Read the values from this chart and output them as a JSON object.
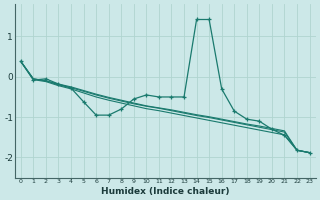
{
  "xlabel": "Humidex (Indice chaleur)",
  "ylabel": "",
  "background_color": "#cce8e8",
  "grid_color": "#b0d4d0",
  "line_color": "#1a7a6e",
  "x_values": [
    0,
    1,
    2,
    3,
    4,
    5,
    6,
    7,
    8,
    9,
    10,
    11,
    12,
    13,
    14,
    15,
    16,
    17,
    18,
    19,
    20,
    21,
    22,
    23
  ],
  "series": [
    [
      0.38,
      -0.08,
      -0.05,
      -0.18,
      -0.28,
      -0.62,
      -0.95,
      -0.95,
      -0.8,
      -0.55,
      -0.45,
      -0.5,
      -0.5,
      -0.5,
      1.42,
      1.42,
      -0.3,
      -0.85,
      -1.05,
      -1.1,
      -1.3,
      -1.45,
      -1.82,
      -1.88
    ],
    [
      0.38,
      -0.05,
      -0.1,
      -0.18,
      -0.25,
      -0.34,
      -0.43,
      -0.51,
      -0.58,
      -0.65,
      -0.72,
      -0.77,
      -0.82,
      -0.88,
      -0.94,
      -0.99,
      -1.05,
      -1.11,
      -1.17,
      -1.22,
      -1.28,
      -1.34,
      -1.82,
      -1.88
    ],
    [
      0.38,
      -0.05,
      -0.1,
      -0.2,
      -0.27,
      -0.36,
      -0.45,
      -0.53,
      -0.6,
      -0.67,
      -0.73,
      -0.78,
      -0.84,
      -0.9,
      -0.96,
      -1.01,
      -1.07,
      -1.13,
      -1.19,
      -1.25,
      -1.31,
      -1.37,
      -1.82,
      -1.88
    ],
    [
      0.38,
      -0.07,
      -0.12,
      -0.22,
      -0.3,
      -0.4,
      -0.5,
      -0.58,
      -0.65,
      -0.72,
      -0.79,
      -0.84,
      -0.9,
      -0.96,
      -1.02,
      -1.08,
      -1.14,
      -1.2,
      -1.26,
      -1.32,
      -1.38,
      -1.44,
      -1.82,
      -1.88
    ]
  ],
  "ylim": [
    -2.5,
    1.8
  ],
  "yticks": [
    -2,
    -1,
    0,
    1
  ],
  "xlim": [
    -0.5,
    23.5
  ]
}
